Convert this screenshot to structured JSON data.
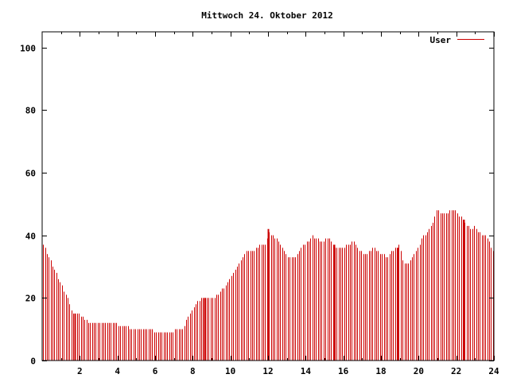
{
  "chart_data": {
    "type": "bar",
    "title": "Mittwoch 24. Oktober 2012",
    "xlabel": "",
    "ylabel": "",
    "xlim": [
      0,
      24
    ],
    "ylim": [
      0,
      105
    ],
    "xticks": [
      2,
      4,
      6,
      8,
      10,
      12,
      14,
      16,
      18,
      20,
      22,
      24
    ],
    "yticks": [
      0,
      20,
      40,
      60,
      80,
      100
    ],
    "legend_position": "top-right",
    "grid": false,
    "series": [
      {
        "name": "User",
        "color": "#cc0000",
        "knots": [
          [
            0.05,
            37
          ],
          [
            0.2,
            35
          ],
          [
            0.35,
            33
          ],
          [
            0.5,
            31
          ],
          [
            0.65,
            29
          ],
          [
            0.8,
            27
          ],
          [
            0.95,
            25
          ],
          [
            1.1,
            23
          ],
          [
            1.25,
            21
          ],
          [
            1.4,
            19
          ],
          [
            1.55,
            16
          ],
          [
            1.7,
            15
          ],
          [
            1.9,
            15
          ],
          [
            2.1,
            14
          ],
          [
            2.3,
            13
          ],
          [
            2.5,
            12
          ],
          [
            3.0,
            12
          ],
          [
            3.8,
            12
          ],
          [
            4.3,
            11
          ],
          [
            4.9,
            10
          ],
          [
            5.8,
            10
          ],
          [
            5.9,
            9
          ],
          [
            6.9,
            9
          ],
          [
            7.0,
            10
          ],
          [
            7.4,
            10
          ],
          [
            7.6,
            12
          ],
          [
            7.8,
            15
          ],
          [
            8.0,
            17
          ],
          [
            8.3,
            19
          ],
          [
            8.5,
            20
          ],
          [
            9.0,
            20
          ],
          [
            9.3,
            21
          ],
          [
            9.6,
            23
          ],
          [
            9.8,
            25
          ],
          [
            10.0,
            27
          ],
          [
            10.2,
            28
          ],
          [
            10.4,
            31
          ],
          [
            10.6,
            33
          ],
          [
            10.8,
            35
          ],
          [
            11.0,
            35
          ],
          [
            11.2,
            35
          ],
          [
            11.4,
            36
          ],
          [
            11.6,
            37
          ],
          [
            11.9,
            37
          ],
          [
            12.0,
            42
          ],
          [
            12.15,
            40
          ],
          [
            12.4,
            39
          ],
          [
            12.6,
            38
          ],
          [
            12.8,
            35
          ],
          [
            13.0,
            33
          ],
          [
            13.3,
            33
          ],
          [
            13.6,
            34
          ],
          [
            13.8,
            37
          ],
          [
            14.1,
            38
          ],
          [
            14.3,
            40
          ],
          [
            14.5,
            39
          ],
          [
            14.8,
            38
          ],
          [
            15.2,
            39
          ],
          [
            15.4,
            37
          ],
          [
            15.6,
            36
          ],
          [
            16.0,
            36
          ],
          [
            16.2,
            37
          ],
          [
            16.5,
            38
          ],
          [
            16.8,
            35
          ],
          [
            17.2,
            34
          ],
          [
            17.6,
            36
          ],
          [
            18.0,
            34
          ],
          [
            18.3,
            33
          ],
          [
            18.6,
            35
          ],
          [
            18.9,
            36
          ],
          [
            19.0,
            38
          ],
          [
            19.1,
            32
          ],
          [
            19.3,
            31
          ],
          [
            19.5,
            31
          ],
          [
            19.7,
            33
          ],
          [
            19.9,
            35
          ],
          [
            20.1,
            38
          ],
          [
            20.3,
            40
          ],
          [
            20.5,
            41
          ],
          [
            20.7,
            43
          ],
          [
            20.85,
            46
          ],
          [
            21.0,
            49
          ],
          [
            21.1,
            47
          ],
          [
            21.3,
            47
          ],
          [
            21.5,
            47
          ],
          [
            21.7,
            48
          ],
          [
            22.0,
            48
          ],
          [
            22.2,
            46
          ],
          [
            22.4,
            45
          ],
          [
            22.6,
            43
          ],
          [
            22.8,
            42
          ],
          [
            23.0,
            43
          ],
          [
            23.2,
            41
          ],
          [
            23.4,
            40
          ],
          [
            23.6,
            40
          ],
          [
            23.8,
            37
          ],
          [
            24.0,
            35
          ]
        ],
        "tall_bars": [
          1.75,
          8.6,
          12.0,
          15.5,
          18.9,
          22.4
        ]
      }
    ]
  }
}
